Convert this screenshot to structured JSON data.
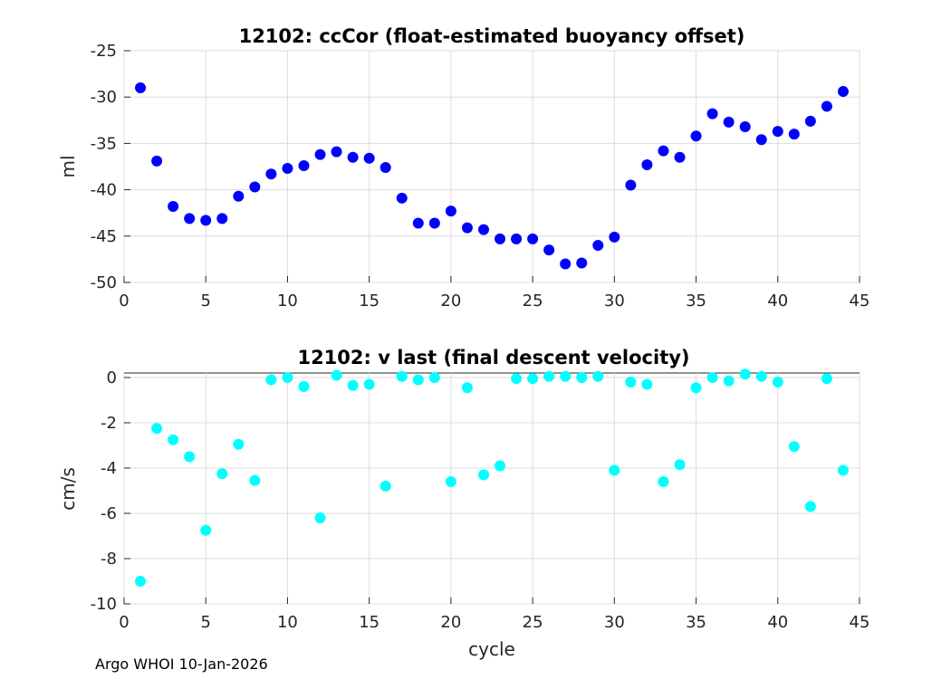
{
  "footer": "Argo WHOI 10-Jan-2026",
  "chart_data": [
    {
      "type": "scatter",
      "title": "12102: ccCor (float-estimated buoyancy offset)",
      "xlabel": "",
      "ylabel": "ml",
      "xlim": [
        0,
        45
      ],
      "ylim": [
        -50,
        -25
      ],
      "xticks": [
        0,
        5,
        10,
        15,
        20,
        25,
        30,
        35,
        40,
        45
      ],
      "yticks": [
        -25,
        -30,
        -35,
        -40,
        -45,
        -50
      ],
      "grid": true,
      "marker_color": "#0000ff",
      "x": [
        1,
        2,
        3,
        4,
        5,
        6,
        7,
        8,
        9,
        10,
        11,
        12,
        13,
        14,
        15,
        16,
        17,
        18,
        19,
        20,
        21,
        22,
        23,
        24,
        25,
        26,
        27,
        28,
        29,
        30,
        31,
        32,
        33,
        34,
        35,
        36,
        37,
        38,
        39,
        40,
        41,
        42,
        43,
        44
      ],
      "y": [
        -29.0,
        -36.9,
        -41.8,
        -43.1,
        -43.3,
        -43.1,
        -40.7,
        -39.7,
        -38.3,
        -37.7,
        -37.4,
        -36.2,
        -35.9,
        -36.5,
        -36.6,
        -37.6,
        -40.9,
        -43.6,
        -43.6,
        -42.3,
        -44.1,
        -44.3,
        -45.3,
        -45.3,
        -45.3,
        -46.5,
        -48.0,
        -47.9,
        -46.0,
        -45.1,
        -39.5,
        -37.3,
        -35.8,
        -36.5,
        -34.2,
        -31.8,
        -32.7,
        -33.2,
        -34.6,
        -33.7,
        -34.0,
        -32.6,
        -31.0,
        -29.4
      ]
    },
    {
      "type": "scatter",
      "title": "12102: v last (final descent velocity)",
      "xlabel": "cycle",
      "ylabel": "cm/s",
      "xlim": [
        0,
        45
      ],
      "ylim": [
        -10,
        0.2
      ],
      "xticks": [
        0,
        5,
        10,
        15,
        20,
        25,
        30,
        35,
        40,
        45
      ],
      "yticks": [
        0,
        -2,
        -4,
        -6,
        -8,
        -10
      ],
      "grid": true,
      "marker_color": "#00ffff",
      "x": [
        1,
        2,
        3,
        4,
        5,
        6,
        7,
        8,
        9,
        10,
        11,
        12,
        13,
        14,
        15,
        16,
        17,
        18,
        19,
        20,
        21,
        22,
        23,
        24,
        25,
        26,
        27,
        28,
        29,
        30,
        31,
        32,
        33,
        34,
        35,
        36,
        37,
        38,
        39,
        40,
        41,
        42,
        43,
        44
      ],
      "y": [
        -9.0,
        -2.25,
        -2.75,
        -3.5,
        -6.75,
        -4.25,
        -2.95,
        -4.55,
        -0.1,
        0.0,
        -0.4,
        -6.2,
        0.1,
        -0.35,
        -0.3,
        -4.8,
        0.05,
        -0.1,
        0.0,
        -4.6,
        -0.45,
        -4.3,
        -3.9,
        -0.05,
        -0.05,
        0.05,
        0.05,
        0.0,
        0.05,
        -4.1,
        -0.2,
        -0.3,
        -4.6,
        -3.85,
        -0.45,
        0.0,
        -0.15,
        0.15,
        0.05,
        -0.2,
        -3.05,
        -5.7,
        -0.05,
        -4.1
      ]
    }
  ]
}
